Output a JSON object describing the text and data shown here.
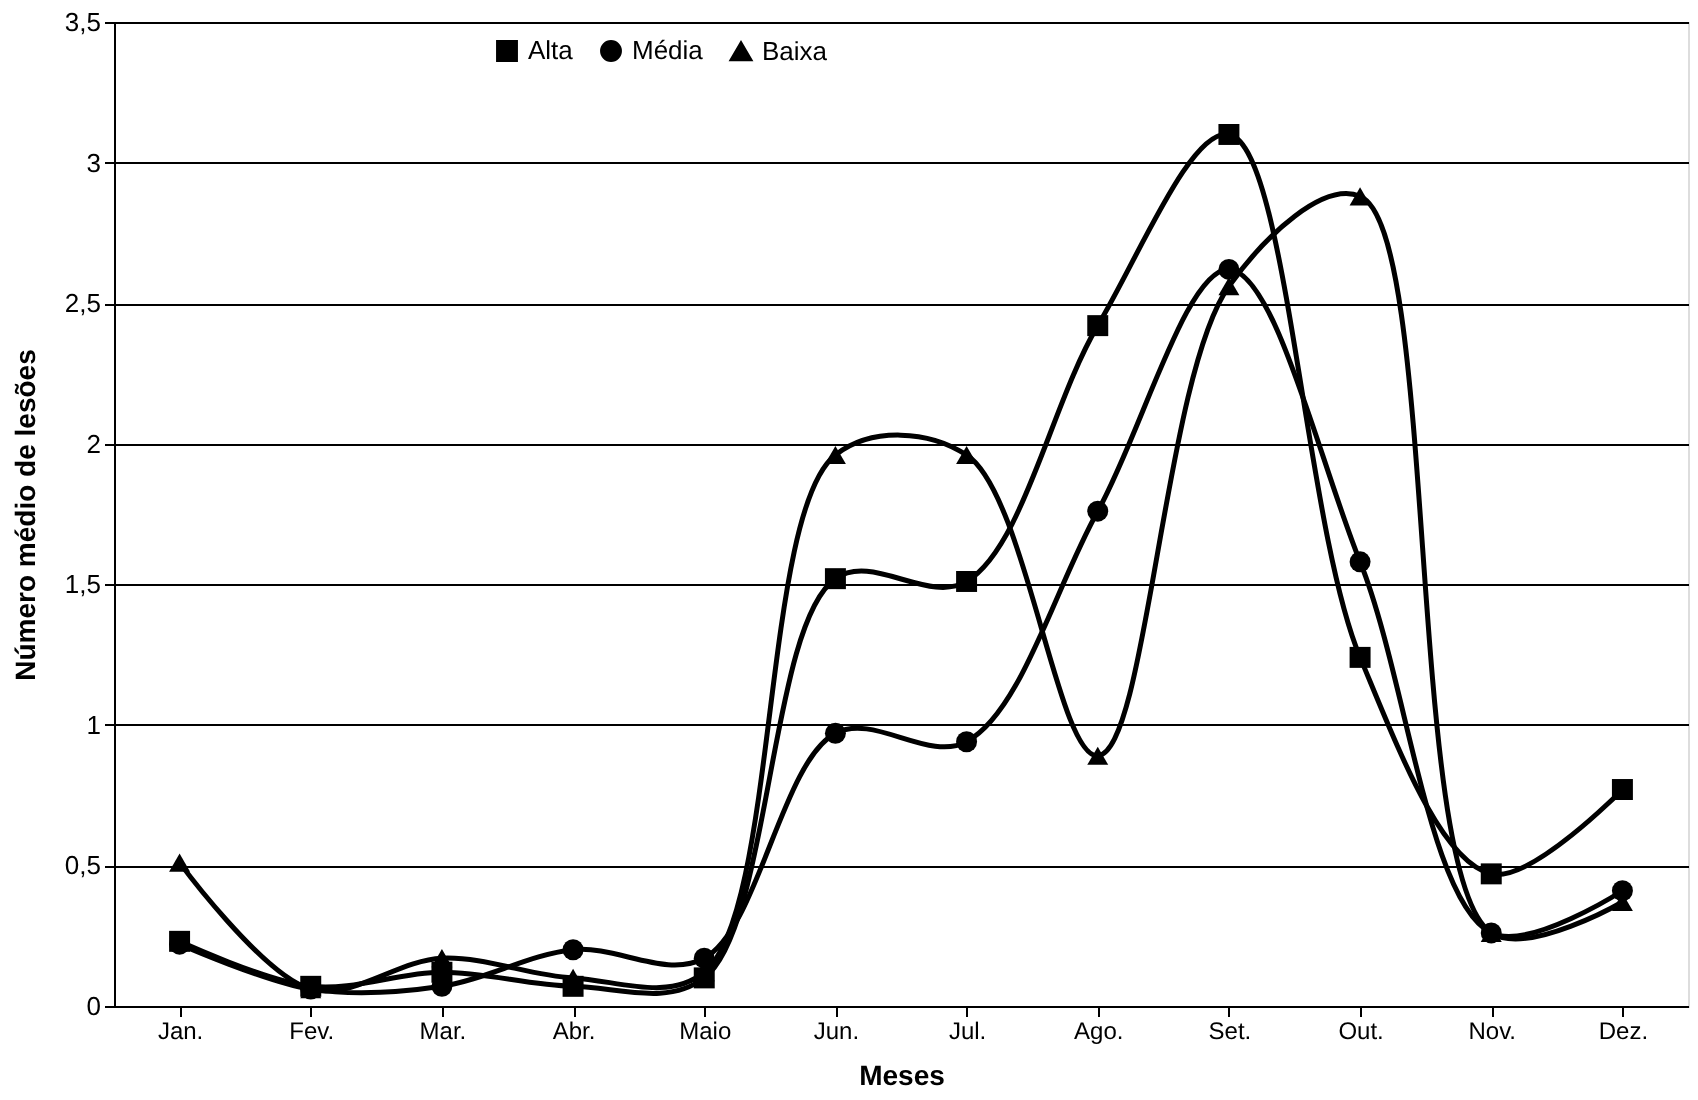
{
  "chart_data": {
    "type": "line",
    "xlabel": "Meses",
    "ylabel": "Número médio de lesões",
    "categories": [
      "Jan.",
      "Fev.",
      "Mar.",
      "Abr.",
      "Maio",
      "Jun.",
      "Jul.",
      "Ago.",
      "Set.",
      "Out.",
      "Nov.",
      "Dez."
    ],
    "series": [
      {
        "name": "Alta",
        "color": "#000000",
        "marker": "square",
        "values": [
          0.23,
          0.07,
          0.12,
          0.07,
          0.1,
          1.52,
          1.51,
          2.42,
          3.1,
          1.24,
          0.47,
          0.77
        ]
      },
      {
        "name": "Média",
        "color": "#000000",
        "marker": "circle",
        "values": [
          0.22,
          0.06,
          0.07,
          0.2,
          0.17,
          0.97,
          0.94,
          1.76,
          2.62,
          1.58,
          0.26,
          0.41
        ]
      },
      {
        "name": "Baixa",
        "color": "#000000",
        "marker": "triangle",
        "values": [
          0.51,
          0.06,
          0.17,
          0.1,
          0.12,
          1.96,
          1.96,
          0.89,
          2.56,
          2.88,
          0.26,
          0.37
        ]
      }
    ],
    "ylim": [
      0,
      3.5
    ],
    "yticks": [
      0,
      {
        "value": 0.5,
        "label": "0,5"
      },
      1,
      {
        "value": 1.5,
        "label": "1,5"
      },
      2,
      {
        "value": 2.5,
        "label": "2,5"
      },
      3,
      {
        "value": 3.5,
        "label": "3,5"
      }
    ],
    "grid": "y",
    "legend": "top",
    "line_style": "solid"
  }
}
